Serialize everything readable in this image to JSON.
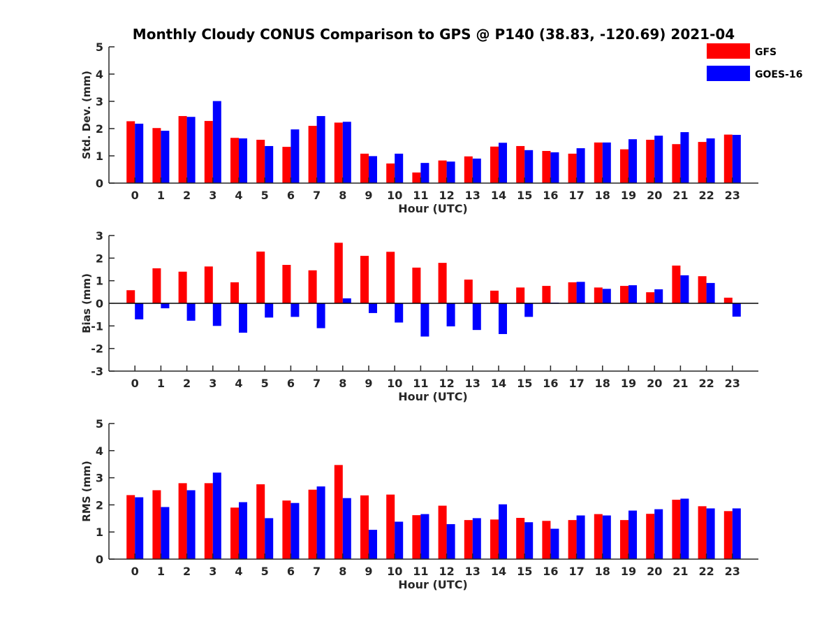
{
  "chart_data": {
    "type": "bar",
    "title": "Monthly Cloudy CONUS Comparison to GPS @ P140 (38.83, -120.69) 2021-04",
    "legend": {
      "placement": "top-right",
      "entries": [
        "GFS",
        "GOES-16"
      ]
    },
    "colors": {
      "GFS": "#ff0000",
      "GOES-16": "#0000ff"
    },
    "panels": [
      {
        "xlabel": "Hour (UTC)",
        "ylabel": "Std. Dev. (mm)",
        "ylim": [
          0,
          5
        ],
        "yticks": [
          0,
          1,
          2,
          3,
          4,
          5
        ],
        "categories": [
          "0",
          "1",
          "2",
          "3",
          "4",
          "5",
          "6",
          "7",
          "8",
          "9",
          "10",
          "11",
          "12",
          "13",
          "14",
          "15",
          "16",
          "17",
          "18",
          "19",
          "20",
          "21",
          "22",
          "23"
        ],
        "series": [
          {
            "name": "GFS",
            "values": [
              2.27,
              2.02,
              2.46,
              2.28,
              1.66,
              1.59,
              1.33,
              2.1,
              2.22,
              1.08,
              0.72,
              0.39,
              0.83,
              0.98,
              1.34,
              1.36,
              1.18,
              1.08,
              1.49,
              1.24,
              1.59,
              1.43,
              1.51,
              1.78
            ]
          },
          {
            "name": "GOES-16",
            "values": [
              2.18,
              1.92,
              2.43,
              3.01,
              1.64,
              1.36,
              1.97,
              2.46,
              2.25,
              0.99,
              1.08,
              0.74,
              0.79,
              0.9,
              1.48,
              1.21,
              1.13,
              1.28,
              1.49,
              1.61,
              1.74,
              1.87,
              1.64,
              1.77
            ]
          }
        ]
      },
      {
        "xlabel": "Hour (UTC)",
        "ylabel": "Bias (mm)",
        "ylim": [
          -3,
          3
        ],
        "yticks": [
          -3,
          -2,
          -1,
          0,
          1,
          2,
          3
        ],
        "categories": [
          "0",
          "1",
          "2",
          "3",
          "4",
          "5",
          "6",
          "7",
          "8",
          "9",
          "10",
          "11",
          "12",
          "13",
          "14",
          "15",
          "16",
          "17",
          "18",
          "19",
          "20",
          "21",
          "22",
          "23"
        ],
        "series": [
          {
            "name": "GFS",
            "values": [
              0.58,
              1.55,
              1.4,
              1.63,
              0.93,
              2.29,
              1.7,
              1.46,
              2.68,
              2.1,
              2.28,
              1.58,
              1.79,
              1.05,
              0.56,
              0.7,
              0.77,
              0.93,
              0.7,
              0.77,
              0.49,
              1.67,
              1.2,
              0.25
            ]
          },
          {
            "name": "GOES-16",
            "values": [
              -0.71,
              -0.22,
              -0.77,
              -1.0,
              -1.3,
              -0.63,
              -0.6,
              -1.1,
              0.22,
              -0.43,
              -0.85,
              -1.47,
              -1.02,
              -1.18,
              -1.36,
              -0.6,
              0.03,
              0.95,
              0.64,
              0.8,
              0.62,
              1.24,
              0.9,
              -0.59
            ]
          }
        ]
      },
      {
        "xlabel": "Hour (UTC)",
        "ylabel": "RMS (mm)",
        "ylim": [
          0,
          5
        ],
        "yticks": [
          0,
          1,
          2,
          3,
          4,
          5
        ],
        "categories": [
          "0",
          "1",
          "2",
          "3",
          "4",
          "5",
          "6",
          "7",
          "8",
          "9",
          "10",
          "11",
          "12",
          "13",
          "14",
          "15",
          "16",
          "17",
          "18",
          "19",
          "20",
          "21",
          "22",
          "23"
        ],
        "series": [
          {
            "name": "GFS",
            "values": [
              2.36,
              2.54,
              2.8,
              2.8,
              1.9,
              2.76,
              2.16,
              2.56,
              3.47,
              2.35,
              2.38,
              1.62,
              1.97,
              1.44,
              1.46,
              1.52,
              1.41,
              1.44,
              1.66,
              1.44,
              1.67,
              2.19,
              1.95,
              1.77
            ]
          },
          {
            "name": "GOES-16",
            "values": [
              2.28,
              1.92,
              2.54,
              3.19,
              2.1,
              1.51,
              2.07,
              2.68,
              2.25,
              1.08,
              1.38,
              1.66,
              1.29,
              1.51,
              2.02,
              1.36,
              1.12,
              1.61,
              1.61,
              1.79,
              1.84,
              2.23,
              1.87,
              1.87
            ]
          }
        ]
      }
    ]
  }
}
